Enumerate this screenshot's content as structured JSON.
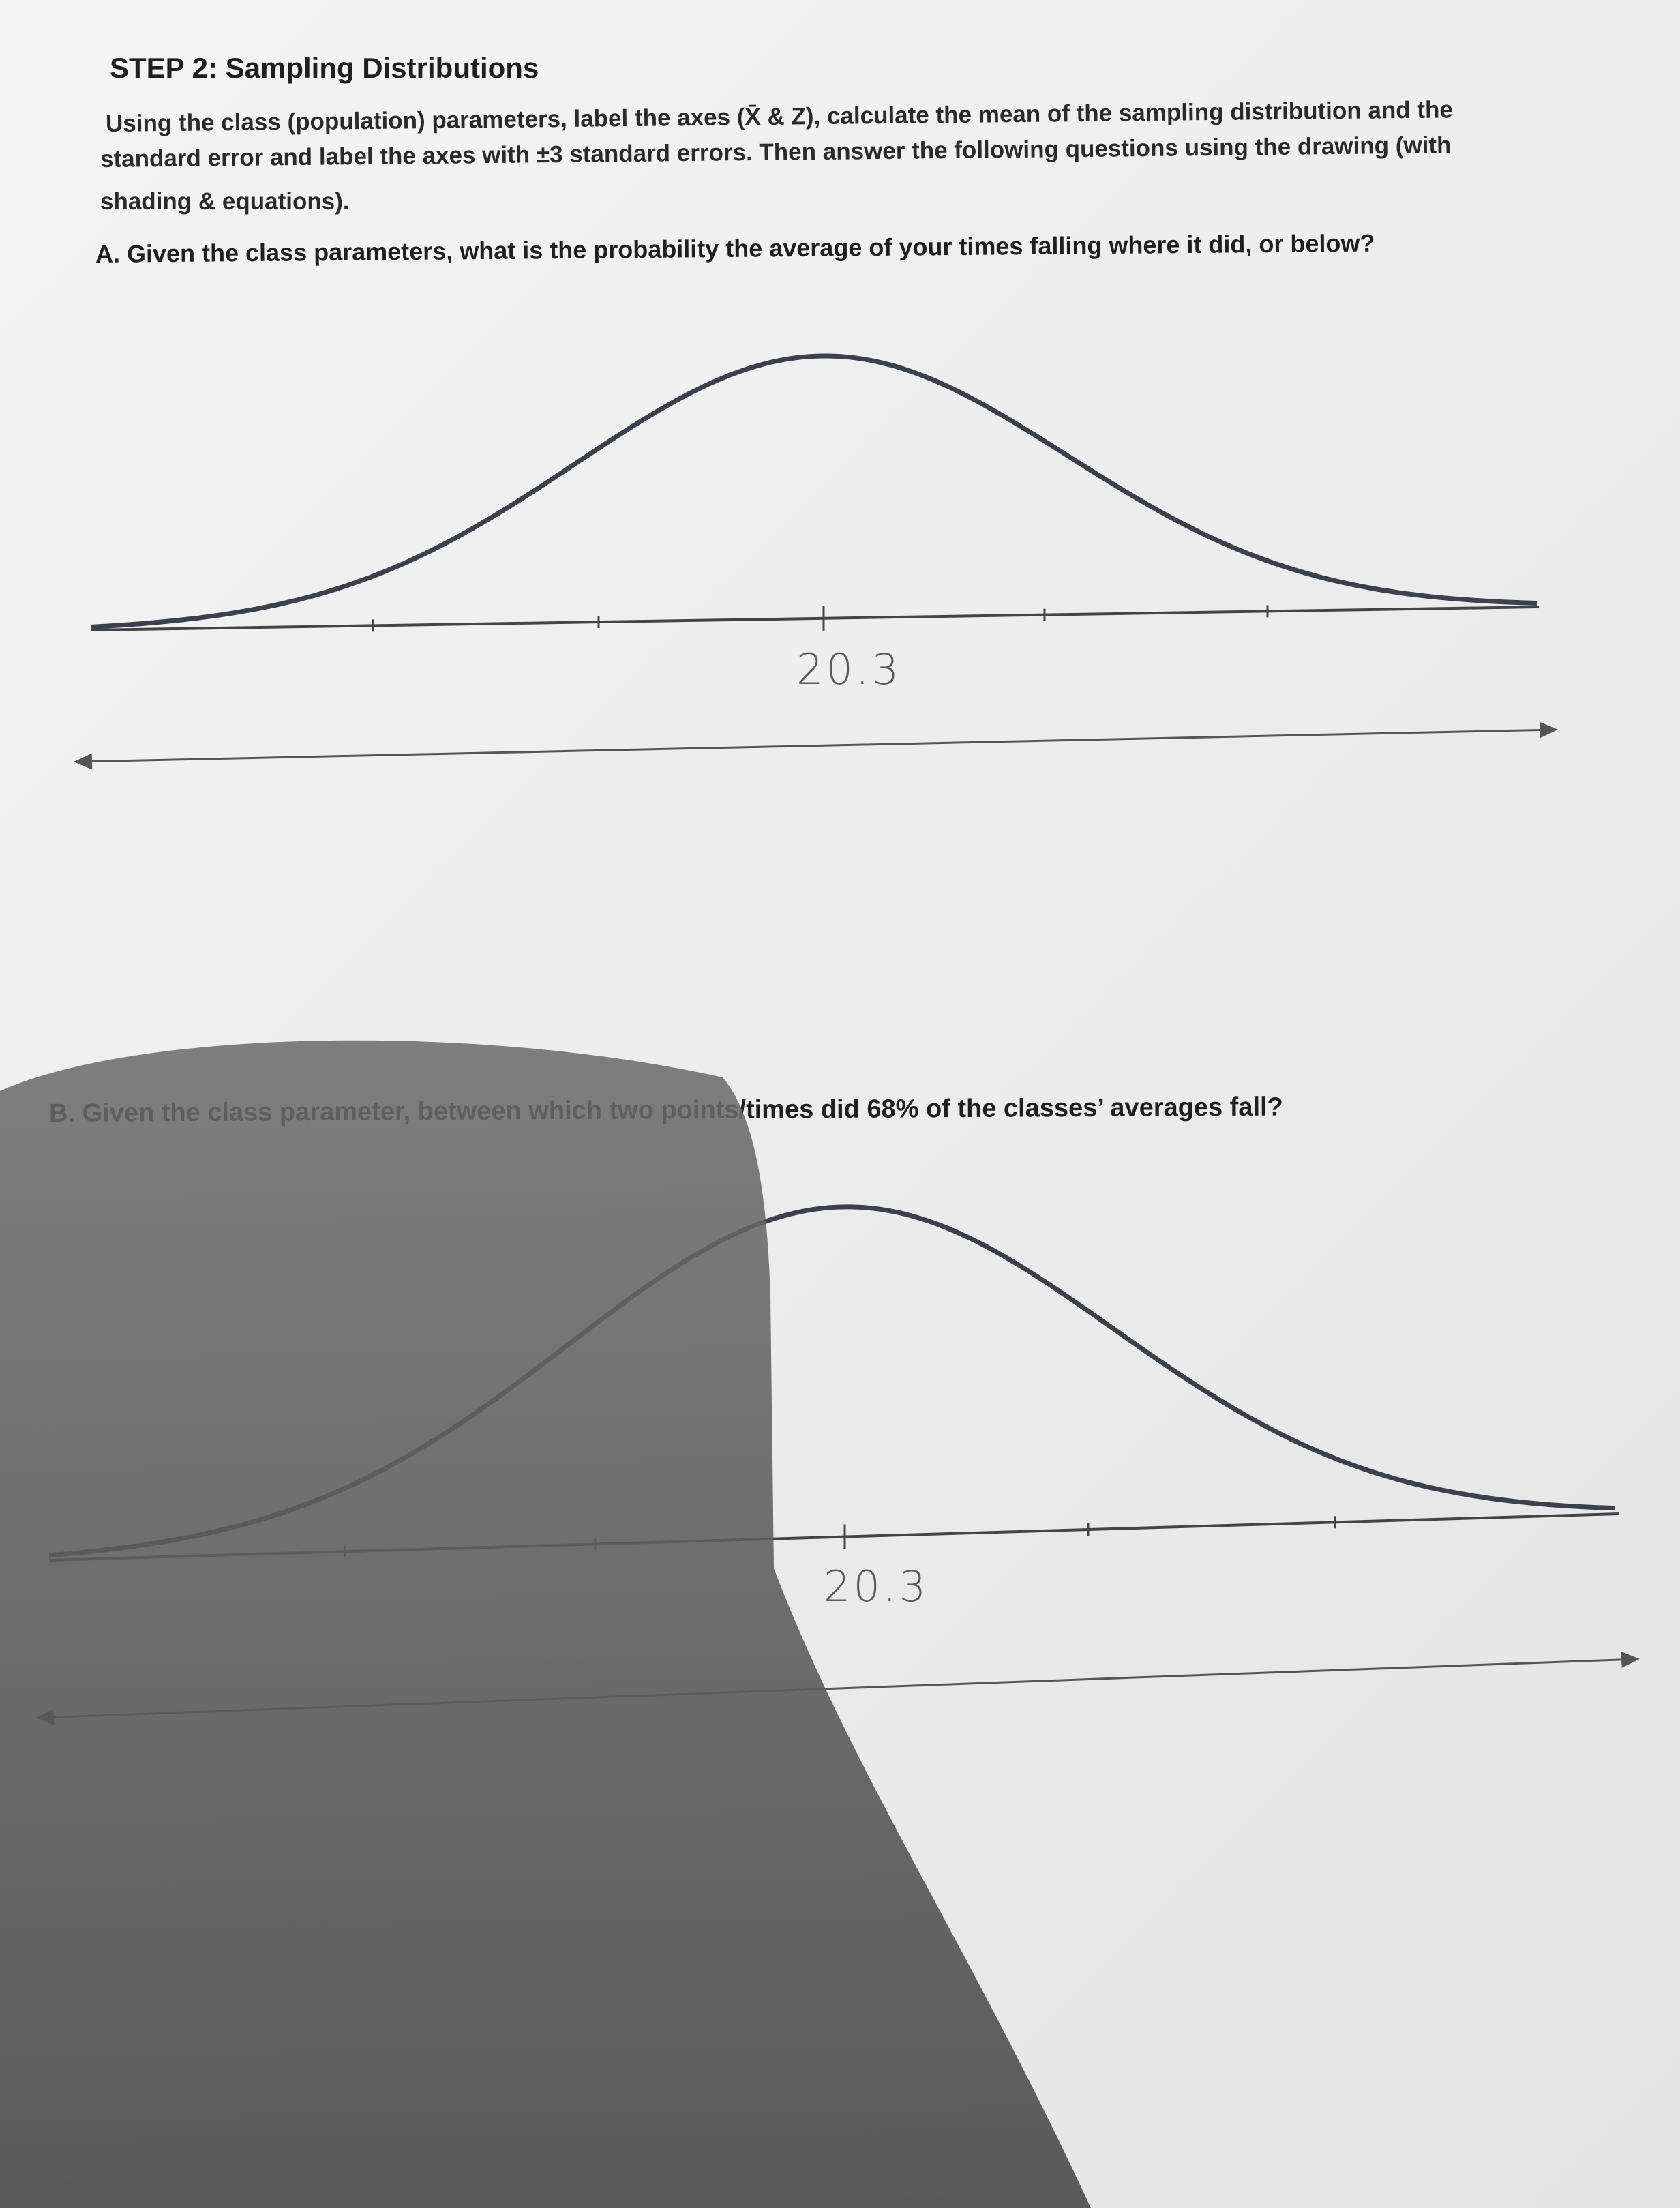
{
  "header": {
    "title": "STEP 2:   Sampling Distributions"
  },
  "instructions": {
    "lines": [
      "Using the class (population) parameters, label the axes (X̄ & Z), calculate the mean of the sampling distribution and the",
      "standard error and label the axes with ±3 standard errors. Then answer the following questions using the drawing (with",
      "shading & equations)."
    ]
  },
  "questions": [
    {
      "text": "A. Given the class parameters, what is the probability the average of your times falling where it did, or below?",
      "handwritten_label": "20.3"
    },
    {
      "text": "B. Given the class parameter, between which two points/times did 68% of the classes’ averages fall?",
      "handwritten_label": "20.3"
    }
  ]
}
